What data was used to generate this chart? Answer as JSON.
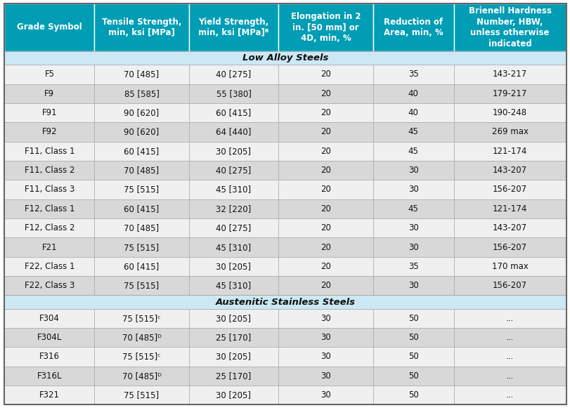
{
  "header": [
    "Grade Symbol",
    "Tensile Strength,\nmin, ksi [MPa]",
    "Yield Strength,\nmin, ksi [MPa]ᴮ",
    "Elongation in 2\nin. [50 mm] or\n4D, min, %",
    "Reduction of\nArea, min, %",
    "Brienell Hardness\nNumber, HBW,\nunless otherwise\nindicated"
  ],
  "section_low_alloy": "Low Alloy Steels",
  "section_austenitic": "Austenitic Stainless Steels",
  "rows_low_alloy": [
    [
      "F5",
      "70 [485]",
      "40 [275]",
      "20",
      "35",
      "143-217"
    ],
    [
      "F9",
      "85 [585]",
      "55 [380]",
      "20",
      "40",
      "179-217"
    ],
    [
      "F91",
      "90 [620]",
      "60 [415]",
      "20",
      "40",
      "190-248"
    ],
    [
      "F92",
      "90 [620]",
      "64 [440]",
      "20",
      "45",
      "269 max"
    ],
    [
      "F11, Class 1",
      "60 [415]",
      "30 [205]",
      "20",
      "45",
      "121-174"
    ],
    [
      "F11, Class 2",
      "70 [485]",
      "40 [275]",
      "20",
      "30",
      "143-207"
    ],
    [
      "F11, Class 3",
      "75 [515]",
      "45 [310]",
      "20",
      "30",
      "156-207"
    ],
    [
      "F12, Class 1",
      "60 [415]",
      "32 [220]",
      "20",
      "45",
      "121-174"
    ],
    [
      "F12, Class 2",
      "70 [485]",
      "40 [275]",
      "20",
      "30",
      "143-207"
    ],
    [
      "F21",
      "75 [515]",
      "45 [310]",
      "20",
      "30",
      "156-207"
    ],
    [
      "F22, Class 1",
      "60 [415]",
      "30 [205]",
      "20",
      "35",
      "170 max"
    ],
    [
      "F22, Class 3",
      "75 [515]",
      "45 [310]",
      "20",
      "30",
      "156-207"
    ]
  ],
  "rows_austenitic": [
    [
      "F304",
      "75 [515]ᶜ",
      "30 [205]",
      "30",
      "50",
      "..."
    ],
    [
      "F304L",
      "70 [485]ᴰ",
      "25 [170]",
      "30",
      "50",
      "..."
    ],
    [
      "F316",
      "75 [515]ᶜ",
      "30 [205]",
      "30",
      "50",
      "..."
    ],
    [
      "F316L",
      "70 [485]ᴰ",
      "25 [170]",
      "30",
      "50",
      "..."
    ],
    [
      "F321",
      "75 [515]",
      "30 [205]",
      "30",
      "50",
      "..."
    ]
  ],
  "header_bg": "#009db5",
  "header_text_color": "#ffffff",
  "section_bg": "#cce8f4",
  "section_text_color": "#111111",
  "row_bg_light": "#f0f0f0",
  "row_bg_dark": "#d8d8d8",
  "border_color": "#aaaaaa",
  "col_widths_rel": [
    1.0,
    1.05,
    1.0,
    1.05,
    0.9,
    1.25
  ],
  "font_size_header": 8.5,
  "font_size_data": 8.5,
  "font_size_section": 9.5
}
